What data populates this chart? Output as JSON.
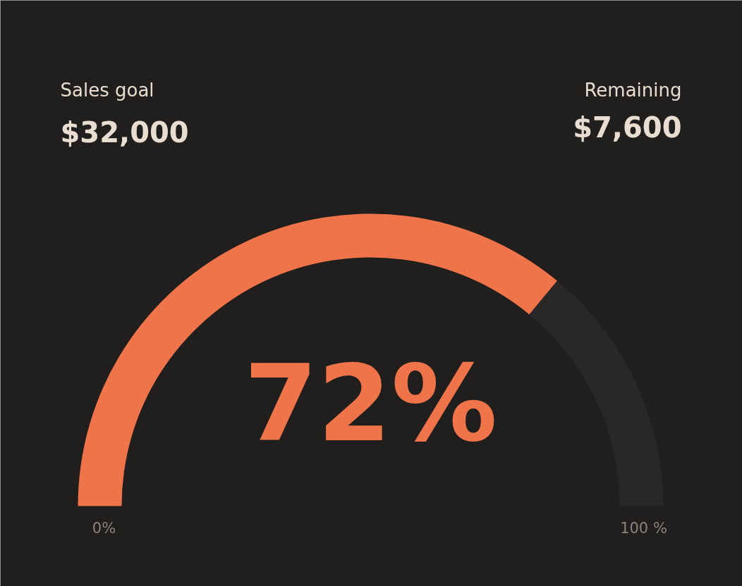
{
  "chart_data": {
    "type": "donut",
    "categories": [
      null,
      null
    ],
    "values": [
      72,
      28
    ],
    "colors": [
      "#f0744a",
      "#2a2826"
    ],
    "value_labels": [
      "72%",
      null
    ],
    "annotations": [
      "Sales goal",
      "$32,000",
      "Remaining",
      "$7,600",
      "0%",
      "100 %"
    ]
  }
}
